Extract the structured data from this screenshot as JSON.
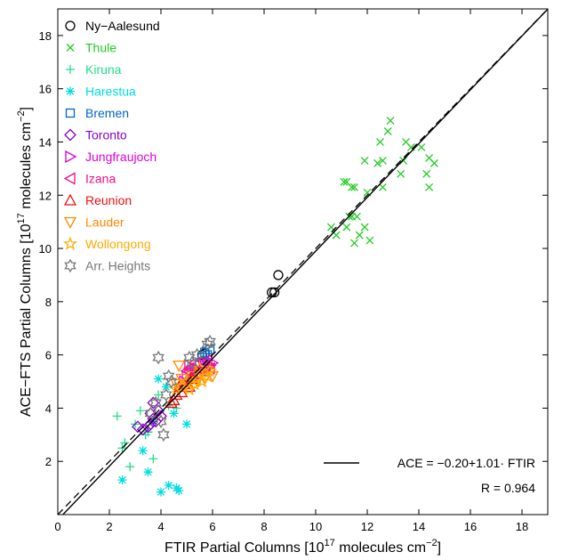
{
  "chart_data": {
    "type": "scatter",
    "title": "",
    "xlabel": {
      "pre": "FTIR Partial Columns [10",
      "sup": "17",
      "mid": " molecules cm",
      "sup2": "−2",
      "post": "]"
    },
    "ylabel": {
      "pre": "ACE−FTS Partial Columns [10",
      "sup": "17",
      "mid": " molecules cm",
      "sup2": "−2",
      "post": "]"
    },
    "xlim": [
      0,
      19
    ],
    "ylim": [
      0,
      19
    ],
    "xticks": [
      0,
      2,
      4,
      6,
      8,
      10,
      12,
      14,
      16,
      18
    ],
    "yticks": [
      2,
      4,
      6,
      8,
      10,
      12,
      14,
      16,
      18
    ],
    "grid": false,
    "legend_position": "top-left",
    "fit": {
      "intercept": -0.2,
      "slope": 1.01,
      "label": "ACE = −0.20+1.01· FTIR",
      "r_label": "R = 0.964"
    },
    "one_to_one_line": true,
    "series": [
      {
        "name": "Ny−Aalesund",
        "marker": "circle",
        "color": "#000000",
        "points": [
          [
            8.3,
            8.35
          ],
          [
            8.4,
            8.35
          ],
          [
            8.55,
            9.0
          ],
          [
            5.6,
            6.0
          ],
          [
            5.7,
            6.05
          ]
        ]
      },
      {
        "name": "Thule",
        "marker": "x",
        "color": "#22cc22",
        "points": [
          [
            10.6,
            10.8
          ],
          [
            10.8,
            10.5
          ],
          [
            11.1,
            12.5
          ],
          [
            11.2,
            12.5
          ],
          [
            11.2,
            10.8
          ],
          [
            11.3,
            11.2
          ],
          [
            11.4,
            11.2
          ],
          [
            11.4,
            12.3
          ],
          [
            11.5,
            12.3
          ],
          [
            11.5,
            10.2
          ],
          [
            11.6,
            11.2
          ],
          [
            11.7,
            10.5
          ],
          [
            11.9,
            10.8
          ],
          [
            11.9,
            13.3
          ],
          [
            12.0,
            12.1
          ],
          [
            12.1,
            10.3
          ],
          [
            12.4,
            13.2
          ],
          [
            12.5,
            14.0
          ],
          [
            12.6,
            12.3
          ],
          [
            12.6,
            13.3
          ],
          [
            12.8,
            14.4
          ],
          [
            12.9,
            14.8
          ],
          [
            13.3,
            12.8
          ],
          [
            13.4,
            13.3
          ],
          [
            13.5,
            14.0
          ],
          [
            13.7,
            13.8
          ],
          [
            14.1,
            13.8
          ],
          [
            14.3,
            12.8
          ],
          [
            14.4,
            13.4
          ],
          [
            14.6,
            13.2
          ],
          [
            14.4,
            12.3
          ]
        ]
      },
      {
        "name": "Kiruna",
        "marker": "plus",
        "color": "#22dd88",
        "points": [
          [
            2.3,
            3.7
          ],
          [
            2.5,
            2.5
          ],
          [
            2.6,
            2.7
          ],
          [
            2.8,
            1.8
          ],
          [
            3.0,
            3.4
          ],
          [
            3.2,
            3.9
          ],
          [
            3.4,
            3.0
          ],
          [
            3.5,
            3.1
          ],
          [
            3.7,
            2.1
          ],
          [
            3.9,
            4.5
          ],
          [
            4.3,
            4.1
          ],
          [
            4.6,
            4.0
          ]
        ]
      },
      {
        "name": "Harestua",
        "marker": "asterisk",
        "color": "#00dddd",
        "points": [
          [
            2.5,
            1.3
          ],
          [
            3.3,
            2.4
          ],
          [
            3.5,
            1.6
          ],
          [
            3.9,
            5.1
          ],
          [
            4.0,
            0.85
          ],
          [
            4.2,
            4.8
          ],
          [
            4.3,
            1.1
          ],
          [
            4.5,
            3.8
          ],
          [
            4.6,
            1.0
          ],
          [
            4.7,
            0.9
          ],
          [
            5.0,
            3.4
          ],
          [
            3.7,
            3.5
          ]
        ]
      },
      {
        "name": "Bremen",
        "marker": "square",
        "color": "#0066cc",
        "points": [
          [
            5.6,
            5.9
          ],
          [
            5.7,
            6.1
          ],
          [
            5.8,
            6.0
          ],
          [
            5.9,
            6.2
          ]
        ]
      },
      {
        "name": "Toronto",
        "marker": "diamond",
        "color": "#8800cc",
        "points": [
          [
            3.1,
            3.3
          ],
          [
            3.3,
            3.2
          ],
          [
            3.5,
            3.3
          ],
          [
            3.6,
            3.4
          ],
          [
            3.6,
            3.8
          ],
          [
            3.7,
            3.6
          ],
          [
            3.8,
            3.5
          ],
          [
            3.9,
            3.9
          ],
          [
            3.7,
            4.2
          ],
          [
            4.0,
            3.7
          ]
        ]
      },
      {
        "name": "Jungfraujoch",
        "marker": "triangle-right",
        "color": "#dd00dd",
        "points": [
          [
            4.9,
            5.0
          ],
          [
            5.0,
            5.2
          ],
          [
            5.2,
            5.3
          ],
          [
            5.3,
            5.5
          ],
          [
            5.4,
            5.4
          ],
          [
            5.5,
            5.6
          ],
          [
            5.6,
            5.3
          ],
          [
            5.7,
            5.7
          ],
          [
            5.8,
            5.5
          ],
          [
            5.9,
            5.6
          ],
          [
            6.0,
            5.7
          ],
          [
            5.1,
            5.6
          ]
        ]
      },
      {
        "name": "Izana",
        "marker": "triangle-left",
        "color": "#ee1188",
        "points": [
          [
            5.0,
            5.4
          ],
          [
            5.1,
            5.5
          ],
          [
            5.2,
            5.2
          ],
          [
            5.3,
            5.7
          ],
          [
            5.4,
            5.3
          ],
          [
            5.5,
            5.5
          ],
          [
            5.6,
            5.4
          ],
          [
            5.7,
            5.6
          ],
          [
            5.8,
            5.8
          ],
          [
            5.9,
            5.5
          ]
        ]
      },
      {
        "name": "Reunion",
        "marker": "triangle-up",
        "color": "#ee1111",
        "points": [
          [
            4.5,
            4.3
          ],
          [
            4.6,
            4.5
          ],
          [
            4.7,
            4.8
          ],
          [
            4.8,
            4.6
          ],
          [
            4.9,
            4.9
          ],
          [
            5.0,
            5.0
          ],
          [
            5.1,
            4.8
          ],
          [
            5.2,
            5.1
          ],
          [
            4.4,
            4.2
          ]
        ]
      },
      {
        "name": "Lauder",
        "marker": "triangle-down",
        "color": "#ff8800",
        "points": [
          [
            4.6,
            4.9
          ],
          [
            4.8,
            5.1
          ],
          [
            5.0,
            4.9
          ],
          [
            5.2,
            5.2
          ],
          [
            5.4,
            5.0
          ],
          [
            5.5,
            5.3
          ],
          [
            5.7,
            5.1
          ],
          [
            5.8,
            5.4
          ],
          [
            6.0,
            5.2
          ],
          [
            4.7,
            5.6
          ]
        ]
      },
      {
        "name": "Wollongong",
        "marker": "star",
        "color": "#ffaa00",
        "points": [
          [
            4.6,
            4.7
          ],
          [
            4.8,
            4.8
          ],
          [
            5.0,
            5.0
          ],
          [
            5.1,
            4.7
          ],
          [
            5.3,
            4.9
          ],
          [
            5.4,
            5.1
          ],
          [
            5.6,
            5.0
          ],
          [
            5.8,
            5.2
          ],
          [
            5.9,
            5.4
          ],
          [
            5.5,
            5.5
          ]
        ]
      },
      {
        "name": "Arr. Heights",
        "marker": "hexagram",
        "color": "#777777",
        "points": [
          [
            3.6,
            3.8
          ],
          [
            3.8,
            4.2
          ],
          [
            3.9,
            5.9
          ],
          [
            4.0,
            3.5
          ],
          [
            4.1,
            3.0
          ],
          [
            4.2,
            4.5
          ],
          [
            4.3,
            5.2
          ],
          [
            4.4,
            5.0
          ],
          [
            5.1,
            5.9
          ],
          [
            5.2,
            5.7
          ],
          [
            5.4,
            6.0
          ],
          [
            5.8,
            6.4
          ],
          [
            5.9,
            6.5
          ]
        ]
      }
    ]
  }
}
